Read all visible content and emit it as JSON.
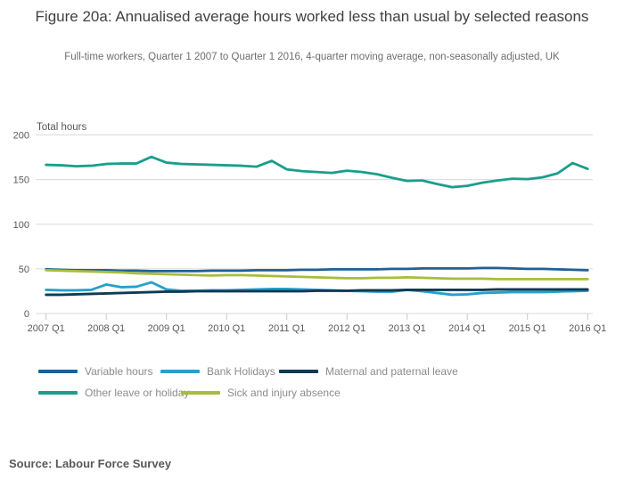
{
  "title": "Figure 20a: Annualised average hours worked less than usual by selected reasons",
  "subtitle": "Full-time workers, Quarter 1 2007 to Quarter 1 2016, 4-quarter moving average, non-seasonally adjusted, UK",
  "source": "Source: Labour Force Survey",
  "chart_data": {
    "type": "line",
    "y_axis_title": "Total hours",
    "ylim": [
      0,
      200
    ],
    "yticks": [
      0,
      50,
      100,
      150,
      200
    ],
    "grid": "horizontal",
    "legend_position": "bottom",
    "x_tick_labels": [
      "2007 Q1",
      "2008 Q1",
      "2009 Q1",
      "2010 Q1",
      "2011 Q1",
      "2012 Q1",
      "2013 Q1",
      "2014 Q1",
      "2015 Q1",
      "2016 Q1"
    ],
    "categories": [
      "2007 Q1",
      "2007 Q2",
      "2007 Q3",
      "2007 Q4",
      "2008 Q1",
      "2008 Q2",
      "2008 Q3",
      "2008 Q4",
      "2009 Q1",
      "2009 Q2",
      "2009 Q3",
      "2009 Q4",
      "2010 Q1",
      "2010 Q2",
      "2010 Q3",
      "2010 Q4",
      "2011 Q1",
      "2011 Q2",
      "2011 Q3",
      "2011 Q4",
      "2012 Q1",
      "2012 Q2",
      "2012 Q3",
      "2012 Q4",
      "2013 Q1",
      "2013 Q2",
      "2013 Q3",
      "2013 Q4",
      "2014 Q1",
      "2014 Q2",
      "2014 Q3",
      "2014 Q4",
      "2015 Q1",
      "2015 Q2",
      "2015 Q3",
      "2015 Q4",
      "2016 Q1"
    ],
    "series": [
      {
        "name": "Variable hours",
        "color": "#206095",
        "values": [
          49.5,
          49,
          48.5,
          48.5,
          48.5,
          48,
          48,
          47.5,
          47.5,
          47.5,
          47.5,
          48,
          48,
          48,
          48.5,
          48.5,
          48.5,
          49,
          49,
          49.5,
          49.5,
          49.5,
          49.5,
          50,
          50,
          50.5,
          50.5,
          50.5,
          50.5,
          51,
          51,
          50.5,
          50,
          50,
          49.5,
          49,
          48.5
        ]
      },
      {
        "name": "Bank Holidays",
        "color": "#27a0cc",
        "values": [
          26.5,
          26,
          26,
          26.5,
          32.5,
          29.5,
          30,
          35,
          27,
          25.5,
          25.5,
          26,
          26,
          26.5,
          27,
          27.5,
          27.5,
          27,
          26.5,
          26,
          25.5,
          25,
          24.5,
          24.5,
          26.5,
          25,
          23,
          21,
          21.5,
          23,
          23.5,
          24,
          24,
          24,
          24.5,
          25,
          25.5
        ]
      },
      {
        "name": "Maternal and paternal leave",
        "color": "#0e3a53",
        "values": [
          21,
          21,
          21.5,
          22,
          22.5,
          23,
          23.5,
          24,
          24.5,
          24.5,
          25,
          25,
          25,
          25,
          25,
          25,
          25,
          25,
          25.5,
          25.5,
          25.5,
          26,
          26,
          26,
          26.5,
          26.5,
          26.5,
          26.5,
          26.5,
          26.5,
          27,
          27,
          27,
          27,
          27,
          27,
          27
        ]
      },
      {
        "name": "Other leave or holiday",
        "color": "#1a9e8b",
        "values": [
          166.5,
          166,
          165,
          165.5,
          167.5,
          168,
          168,
          175.5,
          169,
          167.5,
          167,
          166.5,
          166,
          165.5,
          164.5,
          171,
          161.5,
          159.5,
          158.5,
          157.5,
          160,
          158.5,
          156,
          152,
          148.5,
          149,
          145,
          141.5,
          143,
          146.5,
          149,
          151,
          150.5,
          152.5,
          157,
          168.5,
          162
        ]
      },
      {
        "name": "Sick and injury absence",
        "color": "#a8bd3a",
        "values": [
          48.5,
          48,
          47.5,
          47,
          46.5,
          46,
          45,
          44.5,
          44,
          43.5,
          43,
          42.5,
          43,
          43,
          42.5,
          42,
          41.5,
          41,
          40.5,
          40,
          39.5,
          39.5,
          40,
          40,
          40.5,
          40,
          39.5,
          39,
          39,
          39,
          38.5,
          38.5,
          38.5,
          38.5,
          38.5,
          38.5,
          38.5
        ]
      }
    ]
  }
}
